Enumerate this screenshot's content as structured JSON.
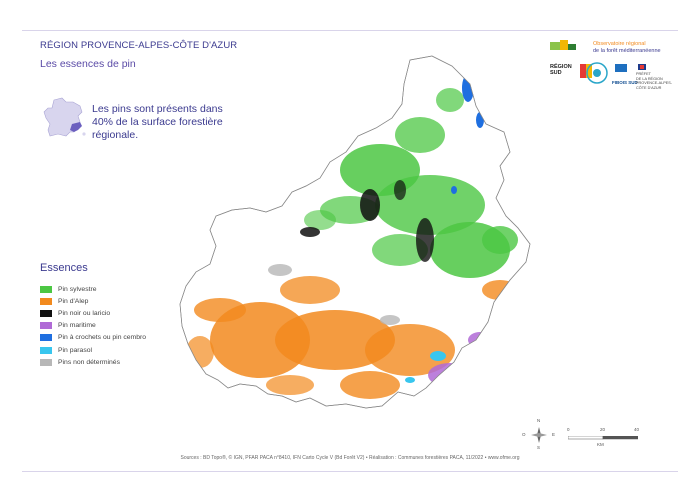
{
  "header": {
    "region_title": "RÉGION PROVENCE-ALPES-CÔTE D'AZUR",
    "map_title": "Les essences de pin"
  },
  "stat_text": {
    "line1": "Les pins sont présents dans",
    "line2": "40% de la surface forestière",
    "line3": "régionale."
  },
  "legend": {
    "title": "Essences",
    "items": [
      {
        "label": "Pin sylvestre",
        "color": "#4cc743"
      },
      {
        "label": "Pin d'Alep",
        "color": "#f28a1e"
      },
      {
        "label": "Pin noir ou laricio",
        "color": "#111111"
      },
      {
        "label": "Pin maritime",
        "color": "#b06ad6"
      },
      {
        "label": "Pin à crochets ou pin cembro",
        "color": "#1f6fe0"
      },
      {
        "label": "Pin parasol",
        "color": "#38c6ee"
      },
      {
        "label": "Pins non déterminés",
        "color": "#b7b7b7"
      }
    ]
  },
  "logos": {
    "observatory_line1": "Observatoire régional",
    "observatory_line2": "de la forêt méditerranéenne",
    "region_line1": "RÉGION",
    "region_line2": "SUD",
    "fibois": "FIBOIS SUD",
    "prefet_line1": "PRÉFET",
    "prefet_line2": "DE LA RÉGION",
    "prefet_line3": "PROVENCE-ALPES-",
    "prefet_line4": "CÔTE D'AZUR"
  },
  "compass": {
    "n": "N",
    "s": "S",
    "e": "E",
    "o": "O"
  },
  "scale": {
    "ticks": [
      "0",
      "20",
      "40"
    ],
    "unit": "KM"
  },
  "sources": "Sources : BD Topo®, © IGN, PFAR PACA n°8410, IFN Carto Cycle V (Bd Forêt V2) • Réalisation : Communes forestières PACA, 11/2022 • www.ofme.org",
  "colors": {
    "accent": "#3b3a8f",
    "region_outline": "#8a8a8a"
  }
}
